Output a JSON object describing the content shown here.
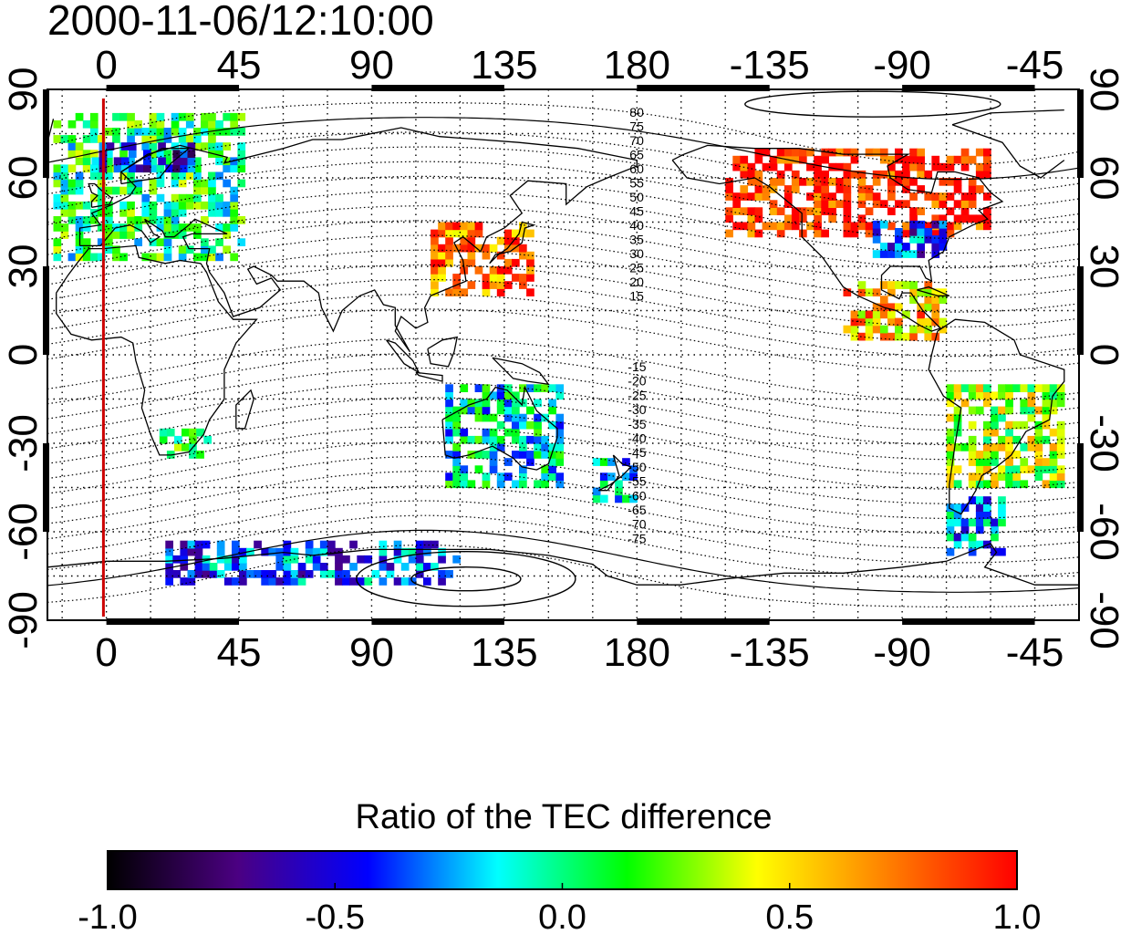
{
  "title": "2000-11-06/12:10:00",
  "map": {
    "x_ticks": [
      "0",
      "45",
      "90",
      "135",
      "180",
      "-135",
      "-90",
      "-45"
    ],
    "y_ticks": [
      "90",
      "60",
      "30",
      "0",
      "-30",
      "-60",
      "-90"
    ],
    "x_range": [
      -20,
      330
    ],
    "y_range": [
      -90,
      90
    ],
    "grid": "dotted every 15 degrees",
    "marker_longitude": -1,
    "marker_color": "#cc0000",
    "contour_labels_north": [
      "80",
      "75",
      "70",
      "65",
      "60",
      "55",
      "50",
      "45",
      "40",
      "35",
      "30",
      "25",
      "20",
      "15"
    ],
    "contour_labels_south": [
      "-15",
      "-20",
      "-25",
      "-30",
      "-35",
      "-40",
      "-45",
      "-50",
      "-55",
      "-60",
      "-65",
      "-70",
      "-75"
    ]
  },
  "colorbar": {
    "title": "Ratio of the TEC difference",
    "ticks": [
      "-1.0",
      "-0.5",
      "0.0",
      "0.5",
      "1.0"
    ],
    "range": [
      -1.0,
      1.0
    ],
    "colors": [
      "#000000",
      "#4b0082",
      "#0000ff",
      "#00ffff",
      "#00ff00",
      "#ffff00",
      "#ff8000",
      "#ff0000"
    ]
  },
  "data_regions": [
    {
      "name": "europe",
      "lon": [
        -18,
        45
      ],
      "lat": [
        32,
        82
      ],
      "ratio": 0.05
    },
    {
      "name": "north-europe-negative",
      "lon": [
        -5,
        30
      ],
      "lat": [
        62,
        72
      ],
      "ratio": -0.5
    },
    {
      "name": "east-asia-positive",
      "lon": [
        110,
        145
      ],
      "lat": [
        20,
        45
      ],
      "ratio": 0.75
    },
    {
      "name": "north-america-positive",
      "lon": [
        -150,
        -60
      ],
      "lat": [
        40,
        70
      ],
      "ratio": 0.95
    },
    {
      "name": "north-america-negative",
      "lon": [
        -100,
        -75
      ],
      "lat": [
        33,
        44
      ],
      "ratio": -0.4
    },
    {
      "name": "central-america",
      "lon": [
        -110,
        -75
      ],
      "lat": [
        5,
        25
      ],
      "ratio": 0.6
    },
    {
      "name": "australia",
      "lon": [
        115,
        155
      ],
      "lat": [
        -45,
        -10
      ],
      "ratio": -0.1
    },
    {
      "name": "south-america",
      "lon": [
        -75,
        -35
      ],
      "lat": [
        -45,
        -10
      ],
      "ratio": 0.3
    },
    {
      "name": "antarctic-band",
      "lon": [
        20,
        120
      ],
      "lat": [
        -78,
        -63
      ],
      "ratio": -0.35
    },
    {
      "name": "south-africa",
      "lon": [
        18,
        35
      ],
      "lat": [
        -35,
        -25
      ],
      "ratio": 0.05
    },
    {
      "name": "new-zealand",
      "lon": [
        165,
        180
      ],
      "lat": [
        -50,
        -35
      ],
      "ratio": -0.2
    },
    {
      "name": "tierra-del-fuego",
      "lon": [
        -75,
        -55
      ],
      "lat": [
        -68,
        -50
      ],
      "ratio": -0.25
    }
  ]
}
